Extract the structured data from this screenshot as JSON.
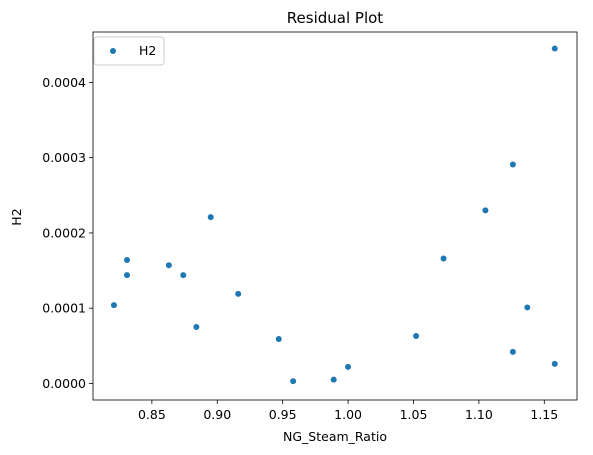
{
  "chart_data": {
    "type": "scatter",
    "title": "Residual Plot",
    "xlabel": "NG_Steam_Ratio",
    "ylabel": "H2",
    "xlim": [
      0.805,
      1.175
    ],
    "ylim": [
      -2.2e-05,
      0.000467
    ],
    "xticks": [
      0.85,
      0.9,
      0.95,
      1.0,
      1.05,
      1.1,
      1.15
    ],
    "xtick_labels": [
      "0.85",
      "0.90",
      "0.95",
      "1.00",
      "1.05",
      "1.10",
      "1.15"
    ],
    "yticks": [
      0.0,
      0.0001,
      0.0002,
      0.0003,
      0.0004
    ],
    "ytick_labels": [
      "0.0000",
      "0.0001",
      "0.0002",
      "0.0003",
      "0.0004"
    ],
    "grid": false,
    "legend": "upper-left",
    "series": [
      {
        "name": "H2",
        "color": "#1f77b4",
        "points": [
          {
            "x": 0.821,
            "y": 0.000104
          },
          {
            "x": 0.831,
            "y": 0.000164
          },
          {
            "x": 0.831,
            "y": 0.000144
          },
          {
            "x": 0.863,
            "y": 0.000157
          },
          {
            "x": 0.874,
            "y": 0.000144
          },
          {
            "x": 0.884,
            "y": 7.5e-05
          },
          {
            "x": 0.895,
            "y": 0.000221
          },
          {
            "x": 0.916,
            "y": 0.000119
          },
          {
            "x": 0.947,
            "y": 5.9e-05
          },
          {
            "x": 0.958,
            "y": 3e-06
          },
          {
            "x": 0.989,
            "y": 5e-06
          },
          {
            "x": 1.0,
            "y": 2.2e-05
          },
          {
            "x": 1.052,
            "y": 6.3e-05
          },
          {
            "x": 1.073,
            "y": 0.000166
          },
          {
            "x": 1.105,
            "y": 0.00023
          },
          {
            "x": 1.126,
            "y": 0.000291
          },
          {
            "x": 1.126,
            "y": 4.2e-05
          },
          {
            "x": 1.137,
            "y": 0.000101
          },
          {
            "x": 1.158,
            "y": 0.000445
          },
          {
            "x": 1.158,
            "y": 2.6e-05
          }
        ]
      }
    ]
  }
}
